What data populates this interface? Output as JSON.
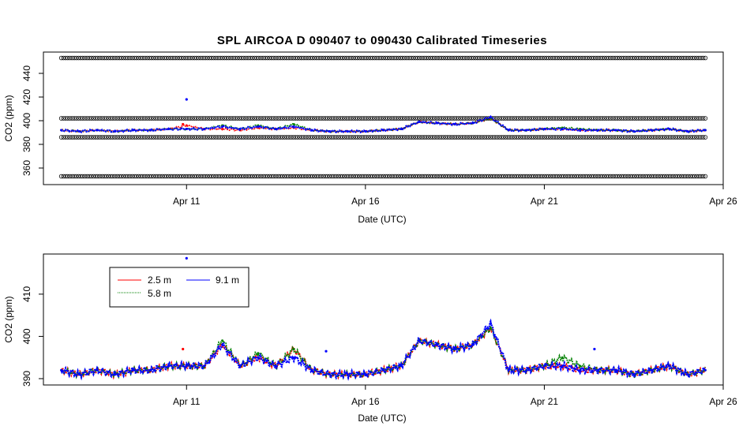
{
  "title": "SPL   AIRCOA  D    090407  to  090430   Calibrated Timeseries",
  "chart_data": [
    {
      "type": "scatter",
      "panel": "top",
      "xlabel": "Date (UTC)",
      "ylabel": "CO2 (ppm)",
      "xlim": [
        7.0,
        26.0
      ],
      "ylim": [
        346,
        458
      ],
      "xticks": [
        {
          "value": 11,
          "label": "Apr 11"
        },
        {
          "value": 16,
          "label": "Apr 16"
        },
        {
          "value": 21,
          "label": "Apr 21"
        },
        {
          "value": 26,
          "label": "Apr 26"
        }
      ],
      "yticks": [
        {
          "value": 360,
          "label": "360"
        },
        {
          "value": 380,
          "label": "380"
        },
        {
          "value": 400,
          "label": "400"
        },
        {
          "value": 420,
          "label": "420"
        },
        {
          "value": 440,
          "label": "440"
        }
      ],
      "reference_levels": [
        {
          "value": 453,
          "marker": "circle"
        },
        {
          "value": 402,
          "marker": "circle"
        },
        {
          "value": 386,
          "marker": "circle"
        },
        {
          "value": 353,
          "marker": "circle"
        }
      ],
      "reference_x_range": [
        7.5,
        25.5
      ],
      "series": [
        {
          "color": "#ff0000",
          "x": [
            7.5,
            8.0,
            8.5,
            9.0,
            9.5,
            10.0,
            10.5,
            11.0,
            11.5,
            12.0,
            12.5,
            13.0,
            13.5,
            14.0,
            14.5,
            15.0,
            15.5,
            16.0,
            16.5,
            17.0,
            17.5,
            18.0,
            18.5,
            19.0,
            19.5,
            20.0,
            20.5,
            21.0,
            21.5,
            22.0,
            22.5,
            23.0,
            23.5,
            24.0,
            24.5,
            25.0,
            25.5
          ],
          "y": [
            392,
            391,
            392,
            391,
            392,
            392,
            393,
            396,
            393,
            393,
            392,
            394,
            393,
            394,
            392,
            391,
            391,
            391,
            392,
            393,
            399,
            398,
            397,
            398,
            402,
            392,
            392,
            393,
            393,
            392,
            392,
            392,
            391,
            392,
            393,
            391,
            392
          ]
        },
        {
          "color": "#008000",
          "x": [
            7.5,
            8.0,
            8.5,
            9.0,
            9.5,
            10.0,
            10.5,
            11.0,
            11.5,
            12.0,
            12.5,
            13.0,
            13.5,
            14.0,
            14.5,
            15.0,
            15.5,
            16.0,
            16.5,
            17.0,
            17.5,
            18.0,
            18.5,
            19.0,
            19.5,
            20.0,
            20.5,
            21.0,
            21.5,
            22.0,
            22.5,
            23.0,
            23.5,
            24.0,
            24.5,
            25.0,
            25.5
          ],
          "y": [
            392,
            391,
            392,
            391,
            392,
            392,
            393,
            393,
            393,
            396,
            393,
            396,
            393,
            397,
            392,
            391,
            391,
            391,
            392,
            393,
            399,
            398,
            397,
            398,
            402,
            392,
            392,
            393,
            394,
            393,
            392,
            392,
            391,
            392,
            393,
            391,
            392
          ]
        },
        {
          "color": "#0000ff",
          "x": [
            7.5,
            8.0,
            8.5,
            9.0,
            9.5,
            10.0,
            10.5,
            11.0,
            11.5,
            12.0,
            12.5,
            13.0,
            13.5,
            14.0,
            14.5,
            15.0,
            15.5,
            16.0,
            16.5,
            17.0,
            17.5,
            18.0,
            18.5,
            19.0,
            19.5,
            20.0,
            20.5,
            21.0,
            21.5,
            22.0,
            22.5,
            23.0,
            23.5,
            24.0,
            24.5,
            25.0,
            25.5
          ],
          "y": [
            392,
            391,
            392,
            391,
            392,
            392,
            393,
            393,
            393,
            395,
            393,
            395,
            393,
            395,
            392,
            391,
            391,
            391,
            392,
            393,
            399,
            398,
            397,
            398,
            403,
            392,
            392,
            393,
            393,
            392,
            392,
            392,
            391,
            392,
            393,
            391,
            392
          ]
        }
      ],
      "outliers": [
        {
          "x": 11.0,
          "y": 418,
          "color": "#0000ff"
        },
        {
          "x": 10.9,
          "y": 397,
          "color": "#ff0000"
        }
      ]
    },
    {
      "type": "scatter",
      "panel": "bottom",
      "xlabel": "Date (UTC)",
      "ylabel": "CO2 (ppm)",
      "xlim": [
        7.0,
        26.0
      ],
      "ylim": [
        388.5,
        419.5
      ],
      "xticks": [
        {
          "value": 11,
          "label": "Apr 11"
        },
        {
          "value": 16,
          "label": "Apr 16"
        },
        {
          "value": 21,
          "label": "Apr 21"
        },
        {
          "value": 26,
          "label": "Apr 26"
        }
      ],
      "yticks": [
        {
          "value": 390,
          "label": "390"
        },
        {
          "value": 400,
          "label": "400"
        },
        {
          "value": 410,
          "label": "410"
        }
      ],
      "legend": {
        "placement": "top-left",
        "entries": [
          {
            "name": "2.5 m",
            "color": "#ff0000"
          },
          {
            "name": "9.1 m",
            "color": "#0000ff"
          },
          {
            "name": "5.8 m",
            "color": "#008000"
          }
        ]
      },
      "series": [
        {
          "name": "2.5 m",
          "color": "#ff0000",
          "x": [
            7.5,
            8.0,
            8.5,
            9.0,
            9.5,
            10.0,
            10.5,
            11.0,
            11.5,
            12.0,
            12.5,
            13.0,
            13.5,
            14.0,
            14.5,
            15.0,
            15.5,
            16.0,
            16.5,
            17.0,
            17.5,
            18.0,
            18.5,
            19.0,
            19.5,
            20.0,
            20.5,
            21.0,
            21.5,
            22.0,
            22.5,
            23.0,
            23.5,
            24.0,
            24.5,
            25.0,
            25.5
          ],
          "y": [
            392,
            391,
            392,
            391,
            392,
            392,
            393,
            393,
            393,
            398,
            393,
            395,
            393,
            397,
            392,
            391,
            391,
            391,
            392,
            393,
            399,
            398,
            397,
            398,
            402,
            392,
            392,
            393,
            393,
            392,
            392,
            392,
            391,
            392,
            393,
            391,
            392
          ]
        },
        {
          "name": "5.8 m",
          "color": "#008000",
          "x": [
            7.5,
            8.0,
            8.5,
            9.0,
            9.5,
            10.0,
            10.5,
            11.0,
            11.5,
            12.0,
            12.5,
            13.0,
            13.5,
            14.0,
            14.5,
            15.0,
            15.5,
            16.0,
            16.5,
            17.0,
            17.5,
            18.0,
            18.5,
            19.0,
            19.5,
            20.0,
            20.5,
            21.0,
            21.5,
            22.0,
            22.5,
            23.0,
            23.5,
            24.0,
            24.5,
            25.0,
            25.5
          ],
          "y": [
            392,
            391,
            392,
            391,
            392,
            392,
            393,
            393,
            393,
            399,
            393,
            396,
            393,
            397,
            392,
            391,
            391,
            391,
            392,
            393,
            399,
            398,
            397,
            398,
            402,
            392,
            392,
            393,
            395,
            393,
            392,
            392,
            391,
            392,
            393,
            391,
            392
          ]
        },
        {
          "name": "9.1 m",
          "color": "#0000ff",
          "x": [
            7.5,
            8.0,
            8.5,
            9.0,
            9.5,
            10.0,
            10.5,
            11.0,
            11.5,
            12.0,
            12.5,
            13.0,
            13.5,
            14.0,
            14.5,
            15.0,
            15.5,
            16.0,
            16.5,
            17.0,
            17.5,
            18.0,
            18.5,
            19.0,
            19.5,
            20.0,
            20.5,
            21.0,
            21.5,
            22.0,
            22.5,
            23.0,
            23.5,
            24.0,
            24.5,
            25.0,
            25.5
          ],
          "y": [
            392,
            391,
            392,
            391,
            392,
            392,
            393,
            393,
            393,
            398,
            393,
            395,
            393,
            395,
            392,
            391,
            391,
            391,
            392,
            393,
            399,
            398,
            397,
            398,
            403,
            392,
            392,
            393,
            393,
            392,
            392,
            392,
            391,
            392,
            393,
            391,
            392
          ]
        }
      ],
      "outliers": [
        {
          "x": 11.0,
          "y": 418.5,
          "color": "#0000ff"
        },
        {
          "x": 10.9,
          "y": 397,
          "color": "#ff0000"
        },
        {
          "x": 14.9,
          "y": 396.5,
          "color": "#0000ff"
        },
        {
          "x": 22.4,
          "y": 397,
          "color": "#0000ff"
        }
      ]
    }
  ]
}
